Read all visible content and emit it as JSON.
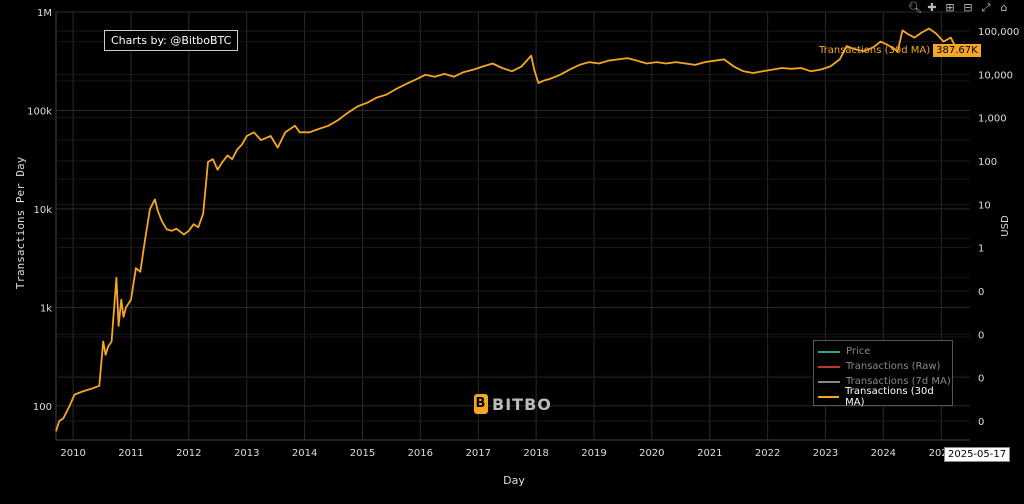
{
  "credit": "Charts by: @BitboBTC",
  "watermark": "BITBO",
  "hover": {
    "label": "Transactions (30d MA)",
    "value": "387.67K",
    "date": "2025-05-17"
  },
  "colors": {
    "line": "#f5a623",
    "price": "#2ca58d",
    "raw": "#c0392b",
    "ma7": "#888888",
    "grid": "#2b2b2b"
  },
  "modebar": [
    "zoom-icon",
    "pan-icon",
    "zoom-in-icon",
    "zoom-out-icon",
    "autoscale-icon",
    "reset-home-icon"
  ],
  "legend": [
    {
      "name": "Price",
      "color": "#2ca58d",
      "on": false
    },
    {
      "name": "Transactions (Raw)",
      "color": "#c0392b",
      "on": false
    },
    {
      "name": "Transactions (7d MA)",
      "color": "#888888",
      "on": false
    },
    {
      "name": "Transactions (30d MA)",
      "color": "#f5a623",
      "on": true
    }
  ],
  "chart_data": {
    "type": "line",
    "xlabel": "Day",
    "ylabel": "Transactions Per Day",
    "y2label": "USD",
    "yscale": "log",
    "x_ticks": [
      "2010",
      "2011",
      "2012",
      "2013",
      "2014",
      "2015",
      "2016",
      "2017",
      "2018",
      "2019",
      "2020",
      "2021",
      "2022",
      "2023",
      "2024",
      "2025"
    ],
    "y_ticks": [
      {
        "v": 100,
        "label": "100"
      },
      {
        "v": 1000,
        "label": "1k"
      },
      {
        "v": 10000,
        "label": "10k"
      },
      {
        "v": 100000,
        "label": "100k"
      },
      {
        "v": 1000000,
        "label": "1M"
      }
    ],
    "y2_ticks": [
      "100,000",
      "10,000",
      "1,000",
      "100",
      "10",
      "1",
      "0",
      "0",
      "0",
      "0"
    ],
    "xlim": [
      "2009-09-15",
      "2025-07-01"
    ],
    "ylim": [
      45,
      1000000
    ],
    "grid": true,
    "series": [
      {
        "name": "Transactions (30d MA)",
        "x": [
          "2009-09-15",
          "2009-10-05",
          "2009-11-01",
          "2009-12-10",
          "2010-01-10",
          "2010-03-01",
          "2010-05-01",
          "2010-06-15",
          "2010-07-10",
          "2010-07-25",
          "2010-08-10",
          "2010-09-01",
          "2010-10-01",
          "2010-10-15",
          "2010-11-01",
          "2010-11-15",
          "2010-12-01",
          "2011-01-01",
          "2011-02-01",
          "2011-03-01",
          "2011-04-01",
          "2011-05-01",
          "2011-06-01",
          "2011-06-20",
          "2011-07-15",
          "2011-08-15",
          "2011-09-15",
          "2011-10-15",
          "2011-12-01",
          "2012-01-01",
          "2012-02-01",
          "2012-03-01",
          "2012-04-01",
          "2012-05-01",
          "2012-06-01",
          "2012-07-01",
          "2012-08-01",
          "2012-09-01",
          "2012-10-01",
          "2012-11-01",
          "2012-12-01",
          "2013-01-01",
          "2013-02-15",
          "2013-04-01",
          "2013-06-01",
          "2013-07-15",
          "2013-09-01",
          "2013-11-01",
          "2013-12-01",
          "2014-02-01",
          "2014-04-01",
          "2014-06-01",
          "2014-08-01",
          "2014-10-01",
          "2014-12-01",
          "2015-02-01",
          "2015-04-01",
          "2015-06-01",
          "2015-08-01",
          "2015-10-01",
          "2015-11-15",
          "2015-12-15",
          "2016-02-01",
          "2016-04-01",
          "2016-06-01",
          "2016-08-01",
          "2016-10-01",
          "2016-12-01",
          "2017-02-01",
          "2017-04-01",
          "2017-06-01",
          "2017-08-01",
          "2017-10-01",
          "2017-12-01",
          "2017-12-20",
          "2018-01-15",
          "2018-02-15",
          "2018-04-01",
          "2018-06-01",
          "2018-08-01",
          "2018-10-01",
          "2018-12-01",
          "2019-02-01",
          "2019-04-01",
          "2019-06-01",
          "2019-08-01",
          "2019-10-01",
          "2019-12-01",
          "2020-02-01",
          "2020-04-01",
          "2020-06-01",
          "2020-08-01",
          "2020-10-01",
          "2020-12-01",
          "2021-02-01",
          "2021-04-01",
          "2021-06-01",
          "2021-08-01",
          "2021-10-01",
          "2021-12-01",
          "2022-02-01",
          "2022-04-01",
          "2022-06-01",
          "2022-08-01",
          "2022-10-01",
          "2022-12-01",
          "2023-02-01",
          "2023-04-01",
          "2023-05-15",
          "2023-07-01",
          "2023-09-01",
          "2023-11-01",
          "2023-12-15",
          "2024-02-01",
          "2024-04-01",
          "2024-05-01",
          "2024-06-01",
          "2024-07-15",
          "2024-09-01",
          "2024-10-15",
          "2024-12-01",
          "2025-01-15",
          "2025-03-01",
          "2025-04-15",
          "2025-05-17"
        ],
        "y": [
          55,
          70,
          75,
          100,
          130,
          140,
          150,
          160,
          450,
          330,
          400,
          450,
          2000,
          650,
          1200,
          800,
          1000,
          1200,
          2500,
          2300,
          5000,
          10000,
          12500,
          9500,
          7500,
          6200,
          6000,
          6300,
          5500,
          6000,
          7000,
          6500,
          9000,
          30000,
          32000,
          25000,
          30000,
          35000,
          32000,
          40000,
          45000,
          55000,
          60000,
          50000,
          55000,
          42000,
          60000,
          70000,
          60000,
          60000,
          65000,
          70000,
          80000,
          95000,
          110000,
          120000,
          135000,
          145000,
          165000,
          185000,
          200000,
          210000,
          230000,
          220000,
          235000,
          220000,
          245000,
          260000,
          280000,
          300000,
          270000,
          250000,
          280000,
          360000,
          260000,
          190000,
          200000,
          210000,
          230000,
          260000,
          290000,
          310000,
          300000,
          320000,
          330000,
          340000,
          320000,
          300000,
          310000,
          300000,
          310000,
          300000,
          290000,
          310000,
          320000,
          330000,
          280000,
          250000,
          240000,
          250000,
          260000,
          270000,
          265000,
          270000,
          250000,
          260000,
          280000,
          330000,
          450000,
          420000,
          400000,
          440000,
          500000,
          460000,
          400000,
          650000,
          600000,
          550000,
          620000,
          680000,
          600000,
          500000,
          550000,
          400000,
          387670
        ]
      }
    ]
  }
}
